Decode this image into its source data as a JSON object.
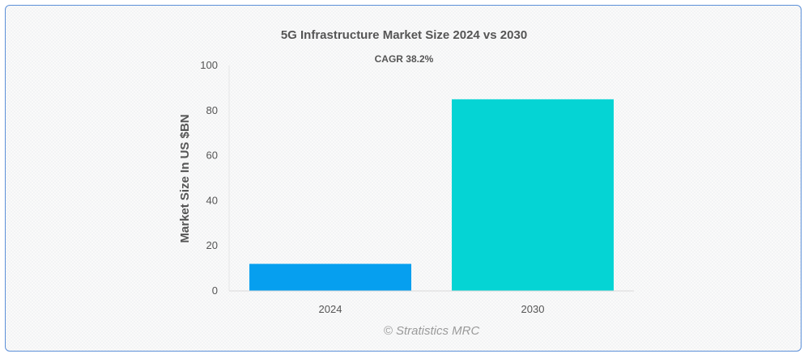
{
  "colors": {
    "bar_2024": "#069fef",
    "bar_2030": "#05d4d4",
    "frame_border": "#5b8fd8",
    "text": "#555555",
    "axis": "#d9d9d9"
  },
  "chart_data": {
    "type": "bar",
    "title": "5G Infrastructure Market Size 2024 vs 2030",
    "subtitle": "CAGR 38.2%",
    "xlabel": "",
    "ylabel": "Market Size In US $BN",
    "categories": [
      "2024",
      "2030"
    ],
    "values": [
      12,
      85
    ],
    "bar_colors": [
      "#069fef",
      "#05d4d4"
    ],
    "ylim": [
      0,
      100
    ],
    "yticks": [
      0,
      20,
      40,
      60,
      80,
      100
    ],
    "grid": false,
    "legend": "none"
  },
  "watermark": "© Stratistics MRC"
}
